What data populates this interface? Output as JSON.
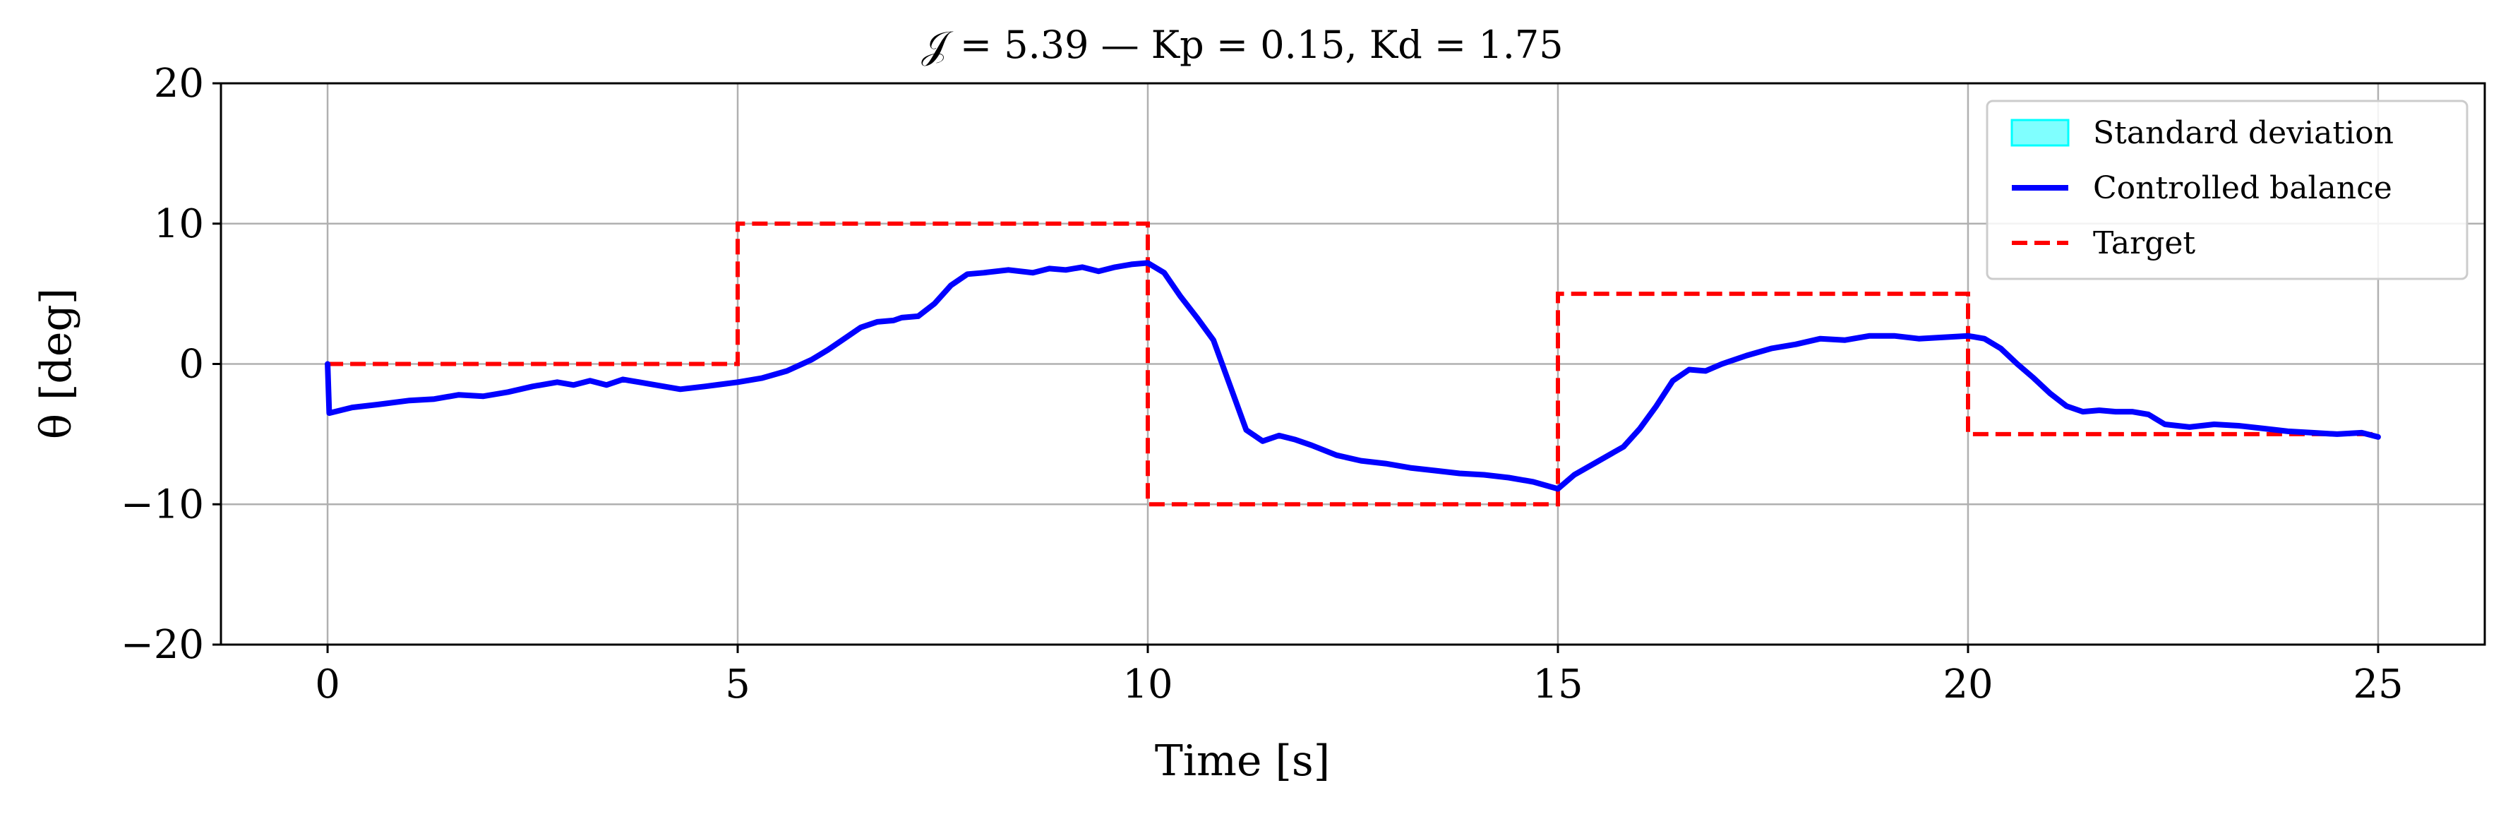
{
  "chart_data": {
    "type": "line",
    "title": "𝒥 = 5.39 — Kp = 0.15, Kd = 1.75",
    "xlabel": "Time [s]",
    "ylabel": "θ [deg]",
    "xlim": [
      -1.3,
      26.3
    ],
    "ylim": [
      -20,
      20
    ],
    "xticks": [
      0,
      5,
      10,
      15,
      20,
      25
    ],
    "yticks": [
      -20,
      -10,
      0,
      10,
      20
    ],
    "xtick_labels": [
      "0",
      "5",
      "10",
      "15",
      "20",
      "25"
    ],
    "ytick_labels": [
      "−20",
      "−10",
      "0",
      "10",
      "20"
    ],
    "grid": true,
    "legend_position": "top-right",
    "legend": [
      {
        "label": "Standard deviation",
        "kind": "patch",
        "color": "#00ffff"
      },
      {
        "label": "Controlled balance",
        "kind": "line",
        "color": "#0000ff"
      },
      {
        "label": "Target",
        "kind": "dashed",
        "color": "#ff0000"
      }
    ],
    "series": [
      {
        "name": "Controlled balance",
        "color": "#0000ff",
        "x": [
          0,
          0.02,
          0.3,
          0.6,
          1.0,
          1.3,
          1.6,
          1.9,
          2.2,
          2.5,
          2.8,
          3.0,
          3.2,
          3.4,
          3.6,
          3.8,
          4.0,
          4.3,
          4.6,
          5.0,
          5.3,
          5.6,
          5.9,
          6.1,
          6.3,
          6.5,
          6.7,
          6.9,
          7.0,
          7.2,
          7.4,
          7.6,
          7.8,
          8.0,
          8.3,
          8.6,
          8.8,
          9.0,
          9.2,
          9.4,
          9.6,
          9.8,
          10.0,
          10.2,
          10.4,
          10.6,
          10.8,
          11.0,
          11.2,
          11.4,
          11.6,
          11.8,
          12.0,
          12.3,
          12.6,
          12.9,
          13.2,
          13.5,
          13.8,
          14.1,
          14.4,
          14.7,
          15.0,
          15.2,
          15.5,
          15.8,
          16.0,
          16.2,
          16.4,
          16.6,
          16.8,
          17.0,
          17.3,
          17.6,
          17.9,
          18.2,
          18.5,
          18.8,
          19.1,
          19.4,
          19.7,
          20.0,
          20.2,
          20.4,
          20.6,
          20.8,
          21.0,
          21.2,
          21.4,
          21.6,
          21.8,
          22.0,
          22.2,
          22.4,
          22.7,
          23.0,
          23.3,
          23.6,
          23.9,
          24.2,
          24.5,
          24.8,
          25.0
        ],
        "y": [
          0,
          -3.5,
          -3.1,
          -2.9,
          -2.6,
          -2.5,
          -2.2,
          -2.3,
          -2.0,
          -1.6,
          -1.3,
          -1.5,
          -1.2,
          -1.5,
          -1.1,
          -1.3,
          -1.5,
          -1.8,
          -1.6,
          -1.3,
          -1.0,
          -0.5,
          0.3,
          1.0,
          1.8,
          2.6,
          3.0,
          3.1,
          3.3,
          3.4,
          4.3,
          5.6,
          6.4,
          6.5,
          6.7,
          6.5,
          6.8,
          6.7,
          6.9,
          6.6,
          6.9,
          7.1,
          7.2,
          6.5,
          4.8,
          3.3,
          1.7,
          -1.5,
          -4.7,
          -5.5,
          -5.1,
          -5.4,
          -5.8,
          -6.5,
          -6.9,
          -7.1,
          -7.4,
          -7.6,
          -7.8,
          -7.9,
          -8.1,
          -8.4,
          -8.9,
          -7.9,
          -6.9,
          -5.9,
          -4.6,
          -3.0,
          -1.2,
          -0.4,
          -0.5,
          0.0,
          0.6,
          1.1,
          1.4,
          1.8,
          1.7,
          2.0,
          2.0,
          1.8,
          1.9,
          2.0,
          1.8,
          1.1,
          0.0,
          -1.0,
          -2.1,
          -3.0,
          -3.4,
          -3.3,
          -3.4,
          -3.4,
          -3.6,
          -4.3,
          -4.5,
          -4.3,
          -4.4,
          -4.6,
          -4.8,
          -4.9,
          -5.0,
          -4.9,
          -5.2
        ]
      },
      {
        "name": "Target",
        "color": "#ff0000",
        "x": [
          0,
          5,
          5,
          10,
          10,
          15,
          15,
          20,
          20,
          25
        ],
        "y": [
          0,
          0,
          10,
          10,
          -10,
          -10,
          5,
          5,
          -5,
          -5
        ]
      }
    ]
  }
}
